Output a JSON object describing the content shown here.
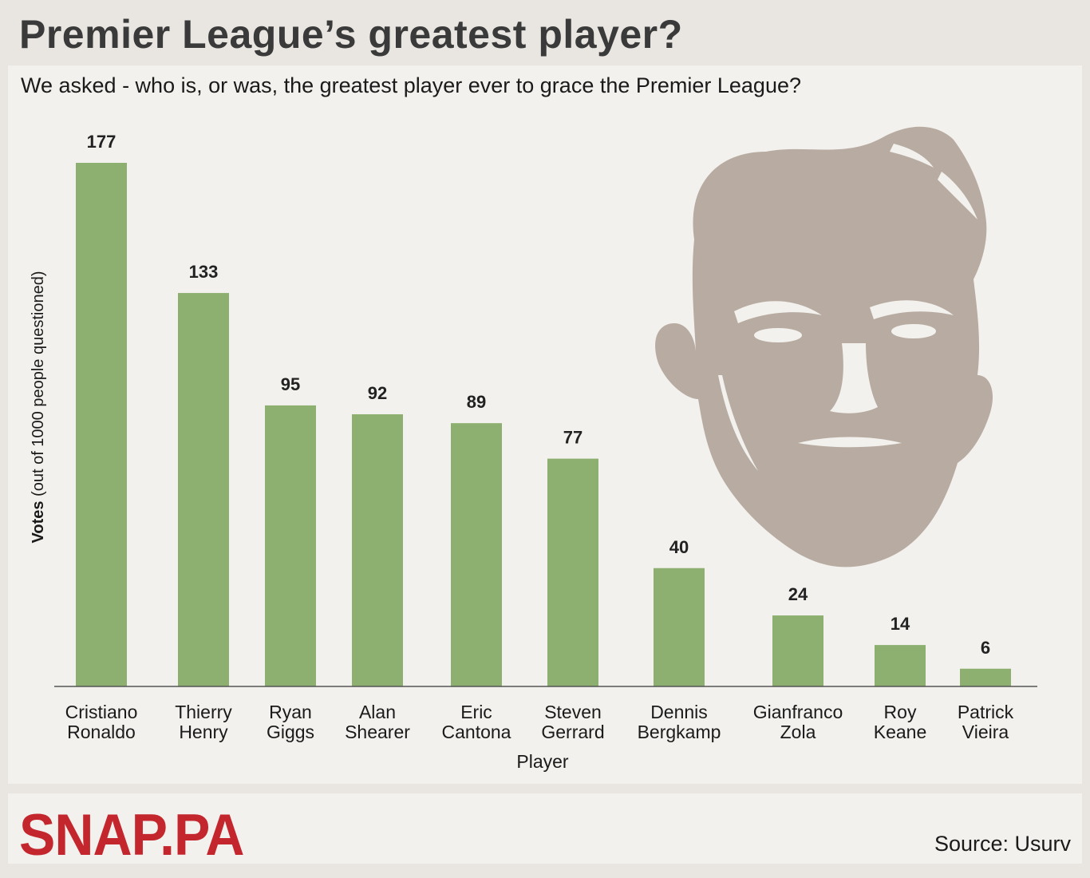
{
  "page": {
    "title": "Premier League’s greatest player?",
    "subtitle": "We asked - who is, or was, the greatest player ever to grace the Premier League?",
    "logo": "SNAP.PA",
    "source": "Source: Usurv"
  },
  "colors": {
    "bar": "#8db070",
    "title": "#3a3a3a",
    "logo": "#c4262e",
    "portrait": "#b8aca2",
    "panel": "#f3f1ed",
    "background": "#e9e6e1"
  },
  "icons": {
    "portrait": "player-portrait-illustration"
  },
  "chart_data": {
    "type": "bar",
    "categories": [
      [
        "Cristiano",
        "Ronaldo"
      ],
      [
        "Thierry",
        "Henry"
      ],
      [
        "Ryan",
        "Giggs"
      ],
      [
        "Alan",
        "Shearer"
      ],
      [
        "Eric",
        "Cantona"
      ],
      [
        "Steven",
        "Gerrard"
      ],
      [
        "Dennis",
        "Bergkamp"
      ],
      [
        "Gianfranco",
        "Zola"
      ],
      [
        "Roy",
        "Keane"
      ],
      [
        "Patrick",
        "Vieira"
      ]
    ],
    "values": [
      177,
      133,
      95,
      92,
      89,
      77,
      40,
      24,
      14,
      6
    ],
    "xlabel": "Player",
    "ylabel_main": "Votes",
    "ylabel_note": " (out of 1000 people questioned)",
    "ylim": [
      0,
      177
    ],
    "grid": false,
    "data_labels": true
  }
}
